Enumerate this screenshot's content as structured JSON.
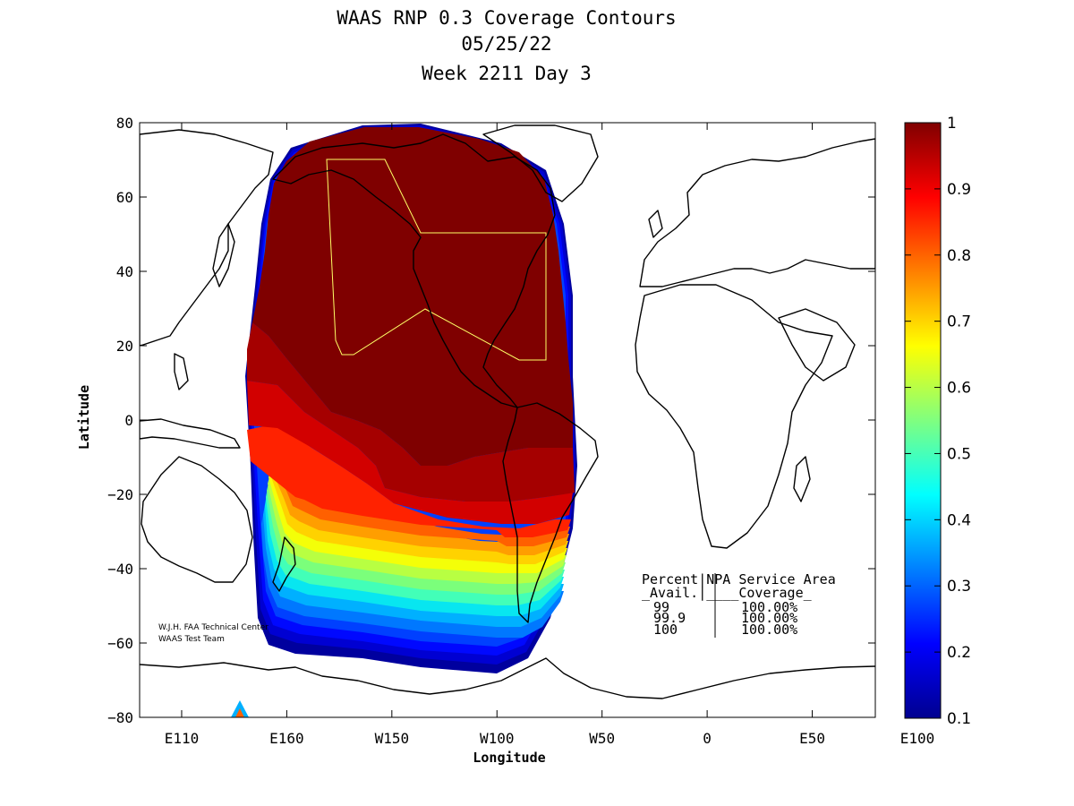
{
  "chart_data": {
    "type": "contour-map",
    "title_lines": [
      "WAAS RNP 0.3 Coverage Contours",
      "05/25/22",
      "Week 2211 Day 3"
    ],
    "xlabel": "Longitude",
    "ylabel": "Latitude",
    "x_ticks": [
      "E110",
      "E160",
      "W150",
      "W100",
      "W50",
      "0",
      "E50",
      "E100"
    ],
    "y_ticks": [
      "80",
      "60",
      "40",
      "20",
      "0",
      "−20",
      "−40",
      "−60",
      "−80"
    ],
    "y_tick_values": [
      80,
      60,
      40,
      20,
      0,
      -20,
      -40,
      -60,
      -80
    ],
    "lon_range": [
      110,
      460
    ],
    "lat_range": [
      -80,
      80
    ],
    "colorbar": {
      "min": 0.1,
      "max": 1,
      "ticks": [
        "1",
        "0.9",
        "0.8",
        "0.7",
        "0.6",
        "0.5",
        "0.4",
        "0.3",
        "0.2",
        "0.1"
      ],
      "tick_values": [
        1,
        0.9,
        0.8,
        0.7,
        0.6,
        0.5,
        0.4,
        0.3,
        0.2,
        0.1
      ],
      "colormap": "jet"
    },
    "coverage_levels": [
      {
        "value": 1.0,
        "color": "#7f0000"
      },
      {
        "value": 0.95,
        "color": "#a50000"
      },
      {
        "value": 0.9,
        "color": "#d20000"
      },
      {
        "value": 0.85,
        "color": "#ff2200"
      },
      {
        "value": 0.8,
        "color": "#ff6000"
      },
      {
        "value": 0.75,
        "color": "#ff9e00"
      },
      {
        "value": 0.7,
        "color": "#ffd200"
      },
      {
        "value": 0.65,
        "color": "#f4ff08"
      },
      {
        "value": 0.6,
        "color": "#b8ff42"
      },
      {
        "value": 0.55,
        "color": "#7bff7b"
      },
      {
        "value": 0.5,
        "color": "#42ffb8"
      },
      {
        "value": 0.45,
        "color": "#08e6f0"
      },
      {
        "value": 0.4,
        "color": "#00b0ff"
      },
      {
        "value": 0.35,
        "color": "#0078ff"
      },
      {
        "value": 0.3,
        "color": "#0040ff"
      },
      {
        "value": 0.25,
        "color": "#0008ff"
      },
      {
        "value": 0.2,
        "color": "#0000d2"
      },
      {
        "value": 0.15,
        "color": "#00009e"
      }
    ],
    "service_area_table": {
      "header_line1": "Percent|NPA Service Area",
      "header_line2": "_Avail.|____Coverage_",
      "rows": [
        {
          "avail": "99",
          "coverage": "100.00%"
        },
        {
          "avail": "99.9",
          "coverage": "100.00%"
        },
        {
          "avail": "100",
          "coverage": "100.00%"
        }
      ]
    },
    "credit_lines": [
      "W.J.H. FAA Technical Center",
      "WAAS Test Team"
    ]
  }
}
